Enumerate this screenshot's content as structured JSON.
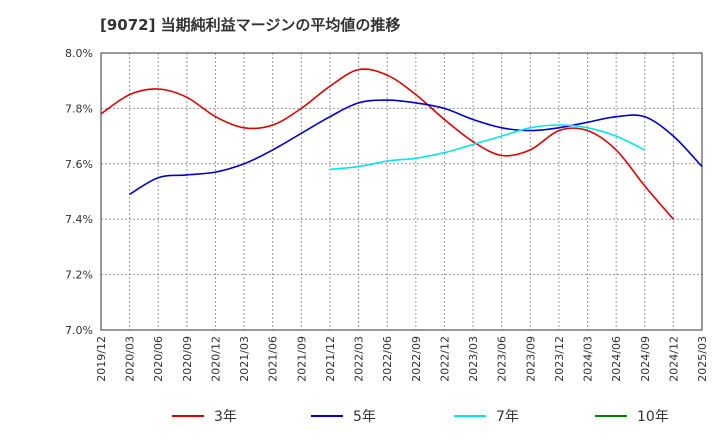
{
  "title": "[9072]  当期純利益マージンの平均値の推移",
  "chart_data": {
    "type": "line",
    "title": "[9072]  当期純利益マージンの平均値の推移",
    "xlabel": "",
    "ylabel": "",
    "x_tick_labels": [
      "2019/12",
      "2020/03",
      "2020/06",
      "2020/09",
      "2020/12",
      "2021/03",
      "2021/06",
      "2021/09",
      "2021/12",
      "2022/03",
      "2022/06",
      "2022/09",
      "2022/12",
      "2023/03",
      "2023/06",
      "2023/09",
      "2023/12",
      "2024/03",
      "2024/06",
      "2024/09",
      "2024/12",
      "2025/03"
    ],
    "y_ticks": [
      "7.0%",
      "7.2%",
      "7.4%",
      "7.6%",
      "7.8%",
      "8.0%"
    ],
    "ylim": [
      7.0,
      8.0
    ],
    "y_unit": "%",
    "grid": "dashed vertical and horizontal",
    "legend_position": "bottom",
    "series": [
      {
        "name": "3年",
        "color": "#dd0000",
        "start": "2019/12",
        "values": [
          7.78,
          7.85,
          7.87,
          7.84,
          7.77,
          7.73,
          7.74,
          7.8,
          7.88,
          7.94,
          7.92,
          7.85,
          7.76,
          7.68,
          7.63,
          7.65,
          7.72,
          7.72,
          7.65,
          7.52,
          7.4
        ]
      },
      {
        "name": "5年",
        "color": "#0000cc",
        "start": "2020/03",
        "values": [
          7.49,
          7.55,
          7.56,
          7.57,
          7.6,
          7.65,
          7.71,
          7.77,
          7.82,
          7.83,
          7.82,
          7.8,
          7.76,
          7.73,
          7.72,
          7.73,
          7.75,
          7.77,
          7.77,
          7.7,
          7.59
        ]
      },
      {
        "name": "7年",
        "color": "#00e5ee",
        "start": "2021/12",
        "values": [
          7.58,
          7.59,
          7.61,
          7.62,
          7.64,
          7.67,
          7.7,
          7.73,
          7.74,
          7.73,
          7.7,
          7.65
        ]
      },
      {
        "name": "10年",
        "color": "#008000",
        "start": "",
        "values": []
      }
    ]
  }
}
